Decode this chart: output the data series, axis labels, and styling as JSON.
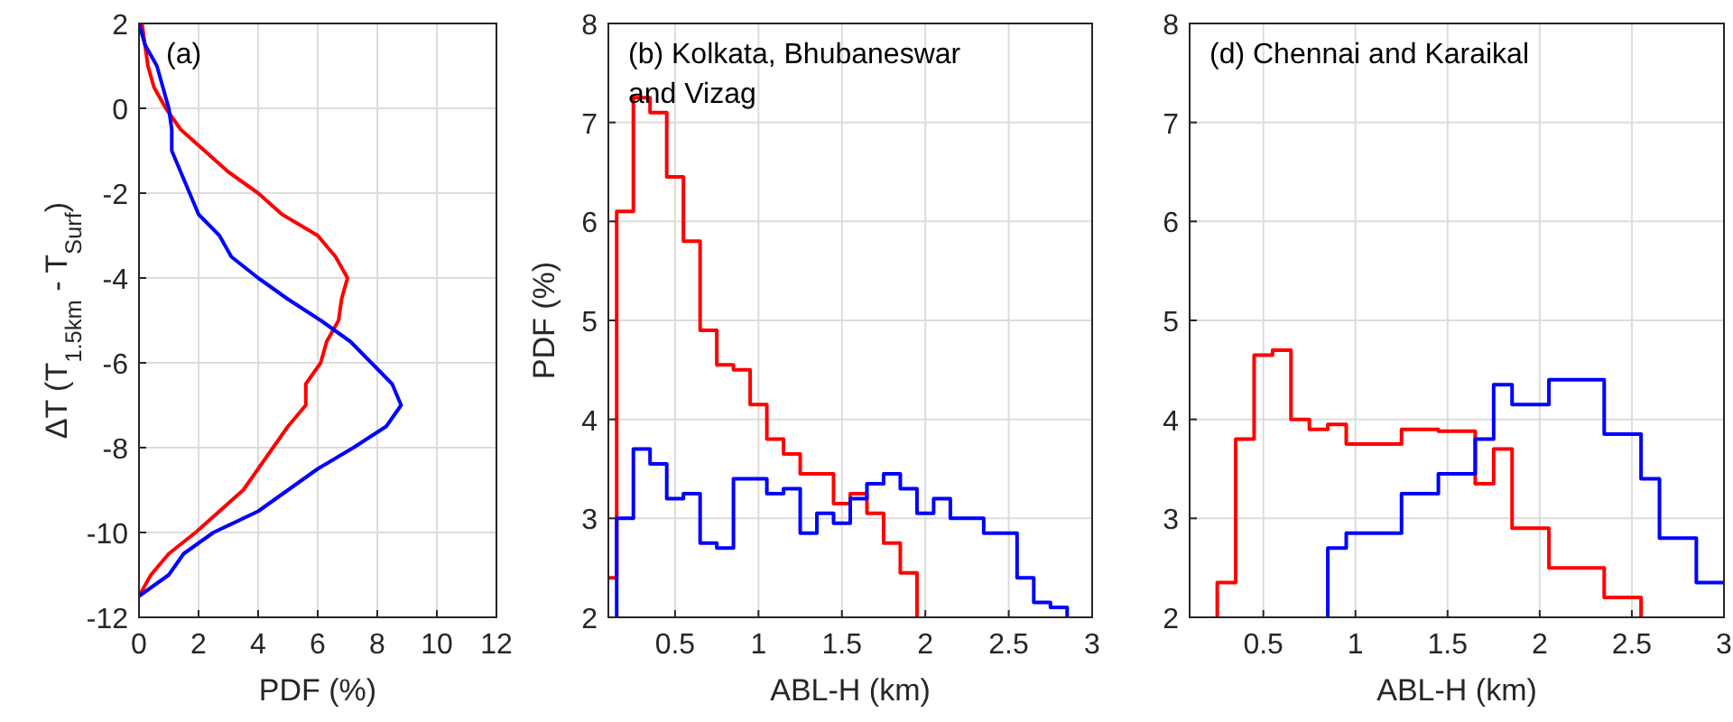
{
  "chart_data": [
    {
      "type": "line",
      "ylabel": "ΔT (T$_{1.5km}$ - T$_{Surf}$)",
      "xlabel": "PDF (%)",
      "annotations": [
        "(a)"
      ],
      "xlim": [
        0,
        12
      ],
      "xticks": [
        0,
        2,
        4,
        6,
        8,
        10,
        12
      ],
      "ylim": [
        -12,
        2
      ],
      "yticks": [
        -12,
        -10,
        -8,
        -6,
        -4,
        -2,
        0,
        2
      ],
      "grid": true,
      "line_style": "solid",
      "marker": "none",
      "series": [
        {
          "color": "#ff0000",
          "x": [
            0.1,
            0.3,
            0.5,
            0.9,
            1.4,
            2.2,
            3,
            4,
            4.8,
            6,
            6.6,
            7,
            6.8,
            6.7,
            6.3,
            6.1,
            5.6,
            5.6,
            5,
            4.5,
            4,
            3.5,
            2.7,
            1.9,
            1,
            0.4,
            0
          ],
          "values": [
            2,
            1,
            0.5,
            0,
            -0.5,
            -1,
            -1.5,
            -2,
            -2.5,
            -3,
            -3.5,
            -4,
            -4.5,
            -5,
            -5.5,
            -6,
            -6.5,
            -7,
            -7.5,
            -8,
            -8.5,
            -9,
            -9.5,
            -10,
            -10.5,
            -11,
            -11.5
          ]
        },
        {
          "color": "#0000ff",
          "x": [
            0,
            0.2,
            0.6,
            0.8,
            1,
            1.1,
            1.1,
            1.4,
            1.7,
            2,
            2.7,
            3.1,
            4,
            5,
            6.1,
            7.1,
            7.8,
            8.5,
            8.8,
            8.3,
            7.2,
            6,
            5,
            4,
            2.5,
            1.5,
            1,
            0
          ],
          "values": [
            2,
            1.5,
            1,
            0.5,
            0,
            -0.5,
            -1,
            -1.5,
            -2,
            -2.5,
            -3,
            -3.5,
            -4,
            -4.5,
            -5,
            -5.5,
            -6,
            -6.5,
            -7,
            -7.5,
            -8,
            -8.5,
            -9,
            -9.5,
            -10,
            -10.5,
            -11,
            -11.5
          ]
        }
      ]
    },
    {
      "type": "step",
      "ylabel": "PDF (%)",
      "xlabel": "ABL-H (km)",
      "annotations": [
        "(b) Kolkata, Bhubaneswar and Vizag"
      ],
      "xlim": [
        0.1,
        3
      ],
      "xticks": [
        0.5,
        1,
        1.5,
        2,
        2.5,
        3
      ],
      "ylim": [
        2,
        8
      ],
      "yticks": [
        2,
        3,
        4,
        5,
        6,
        7,
        8
      ],
      "grid": true,
      "line_style": "solid",
      "marker": "none",
      "series": [
        {
          "color": "#ff0000",
          "x": [
            0.1,
            0.15,
            0.25,
            0.35,
            0.45,
            0.55,
            0.65,
            0.75,
            0.85,
            0.95,
            1.05,
            1.15,
            1.25,
            1.35,
            1.45,
            1.55,
            1.65,
            1.75,
            1.85,
            1.95
          ],
          "values": [
            2.4,
            6.1,
            7.25,
            7.1,
            6.45,
            5.8,
            4.9,
            4.55,
            4.5,
            4.15,
            3.8,
            3.65,
            3.45,
            3.45,
            3.15,
            3.25,
            3.05,
            2.75,
            2.45,
            2
          ]
        },
        {
          "color": "#0000ff",
          "x": [
            0.15,
            0.15,
            0.25,
            0.35,
            0.45,
            0.55,
            0.65,
            0.75,
            0.85,
            0.95,
            1.05,
            1.15,
            1.25,
            1.35,
            1.45,
            1.55,
            1.65,
            1.75,
            1.85,
            1.95,
            2.05,
            2.15,
            2.25,
            2.35,
            2.45,
            2.55,
            2.65,
            2.75,
            2.85
          ],
          "values": [
            2,
            3,
            3.7,
            3.55,
            3.2,
            3.25,
            2.75,
            2.7,
            3.4,
            3.4,
            3.25,
            3.3,
            2.85,
            3.05,
            2.95,
            3.2,
            3.35,
            3.45,
            3.3,
            3.05,
            3.2,
            3,
            3,
            2.85,
            2.85,
            2.4,
            2.15,
            2.1,
            2
          ]
        }
      ]
    },
    {
      "type": "step",
      "xlabel": "ABL-H (km)",
      "annotations": [
        "(d) Chennai and Karaikal"
      ],
      "xlim": [
        0.1,
        3
      ],
      "xticks": [
        0.5,
        1,
        1.5,
        2,
        2.5,
        3
      ],
      "ylim": [
        2,
        8
      ],
      "yticks": [
        2,
        3,
        4,
        5,
        6,
        7,
        8
      ],
      "grid": true,
      "line_style": "solid",
      "marker": "none",
      "series": [
        {
          "color": "#ff0000",
          "x": [
            0.25,
            0.25,
            0.35,
            0.45,
            0.55,
            0.65,
            0.75,
            0.85,
            0.95,
            1.25,
            1.45,
            1.65,
            1.75,
            1.85,
            2.05,
            2.35,
            2.55
          ],
          "values": [
            2,
            2.35,
            3.8,
            4.65,
            4.7,
            4,
            3.9,
            3.95,
            3.75,
            3.9,
            3.88,
            3.35,
            3.7,
            2.9,
            2.5,
            2.2,
            2
          ]
        },
        {
          "color": "#0000ff",
          "x": [
            0.85,
            0.85,
            0.95,
            1.25,
            1.45,
            1.65,
            1.75,
            1.85,
            2.05,
            2.35,
            2.55,
            2.65,
            2.85,
            3
          ],
          "values": [
            2,
            2.7,
            2.85,
            3.25,
            3.45,
            3.8,
            4.35,
            4.15,
            4.4,
            3.85,
            3.4,
            2.8,
            2.35,
            2.35
          ]
        }
      ]
    }
  ]
}
